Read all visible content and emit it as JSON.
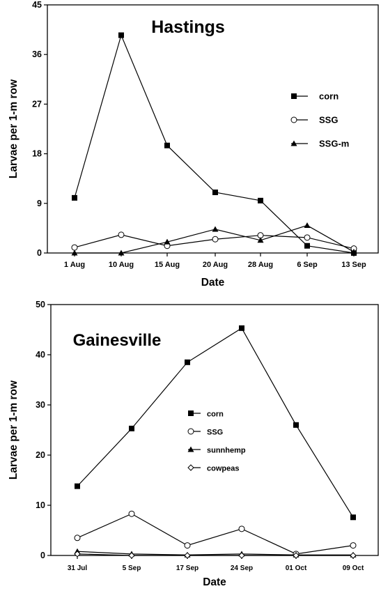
{
  "chart_data": [
    {
      "type": "line",
      "title": "Hastings",
      "xlabel": "Date",
      "ylabel": "Larvae per 1-m row",
      "categories": [
        "1 Aug",
        "10 Aug",
        "15 Aug",
        "20 Aug",
        "28 Aug",
        "6 Sep",
        "13 Sep"
      ],
      "ylim": [
        0,
        45
      ],
      "yticks": [
        0,
        9,
        18,
        27,
        36,
        45
      ],
      "legend_position": "right",
      "series": [
        {
          "name": "corn",
          "marker": "filled-square",
          "values": [
            10,
            39.5,
            19.5,
            11,
            9.5,
            1.3,
            0
          ]
        },
        {
          "name": "SSG",
          "marker": "open-circle",
          "values": [
            1,
            3.3,
            1.3,
            2.5,
            3.2,
            2.8,
            0.8
          ]
        },
        {
          "name": "SSG-m",
          "marker": "filled-triangle",
          "values": [
            0,
            0,
            2,
            4.3,
            2.3,
            5,
            0.2
          ]
        }
      ]
    },
    {
      "type": "line",
      "title": "Gainesville",
      "xlabel": "Date",
      "ylabel": "Larvae per 1-m row",
      "categories": [
        "31 Jul",
        "5 Sep",
        "17 Sep",
        "24 Sep",
        "01 Oct",
        "09 Oct"
      ],
      "ylim": [
        0,
        50
      ],
      "yticks": [
        0,
        10,
        20,
        30,
        40,
        50
      ],
      "legend_position": "center",
      "series": [
        {
          "name": "corn",
          "marker": "filled-square",
          "values": [
            13.8,
            25.3,
            38.5,
            45.3,
            26,
            7.6
          ]
        },
        {
          "name": "SSG",
          "marker": "open-circle",
          "values": [
            3.5,
            8.3,
            2,
            5.3,
            0.3,
            2
          ]
        },
        {
          "name": "sunnhemp",
          "marker": "filled-triangle",
          "values": [
            0.8,
            0.3,
            0.1,
            0.3,
            0.1,
            0.1
          ]
        },
        {
          "name": "cowpeas",
          "marker": "open-diamond",
          "values": [
            0.3,
            0,
            0,
            0,
            0,
            0
          ]
        }
      ]
    }
  ]
}
